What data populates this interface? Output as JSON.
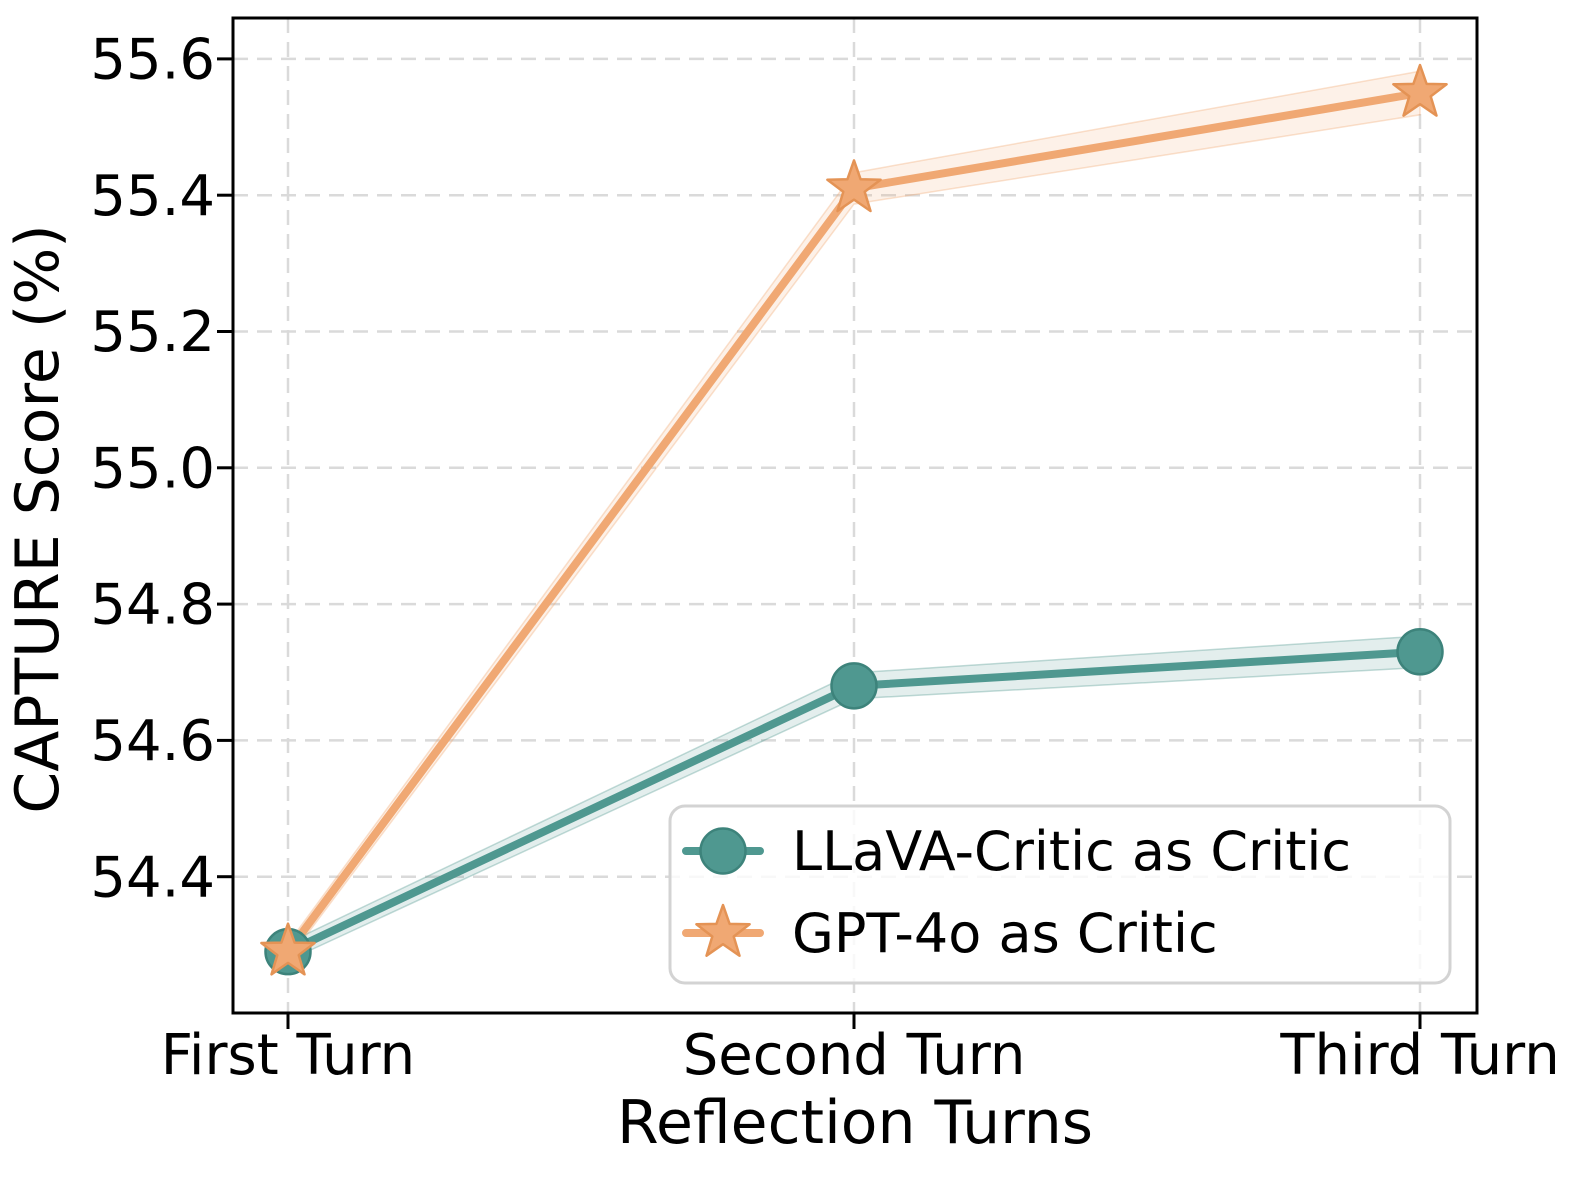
{
  "figure": {
    "background": "#ffffff"
  },
  "chart_data": {
    "type": "line",
    "title": "",
    "xlabel": "Reflection Turns",
    "ylabel": "CAPTURE Score (%)",
    "categories": [
      "First Turn",
      "Second Turn",
      "Third Turn"
    ],
    "series": [
      {
        "name": "LLaVA-Critic as Critic",
        "marker": "circle",
        "color": "#4F9890",
        "edge_color": "#3D837B",
        "values": [
          54.29,
          54.68,
          54.73
        ],
        "band_halfwidth": [
          0.013,
          0.019,
          0.023
        ]
      },
      {
        "name": "GPT-4o as Critic",
        "marker": "star",
        "color": "#F0A873",
        "edge_color": "#E49355",
        "values": [
          54.29,
          55.41,
          55.55
        ],
        "band_halfwidth": [
          0.012,
          0.023,
          0.032
        ]
      }
    ],
    "yticks": [
      54.4,
      54.6,
      54.8,
      55.0,
      55.2,
      55.4,
      55.6
    ],
    "ytick_labels": [
      "54.4",
      "54.6",
      "54.8",
      "55.0",
      "55.2",
      "55.4",
      "55.6"
    ],
    "ylim": [
      54.2,
      55.66
    ],
    "grid": true,
    "grid_style": "dashed",
    "legend_position": "lower right",
    "colors": {
      "grid": "#DADADA",
      "spine": "#000000",
      "tick": "#000000",
      "text": "#000000",
      "legend_border": "#D3D3D3",
      "legend_background": "#FFFFFF"
    }
  }
}
